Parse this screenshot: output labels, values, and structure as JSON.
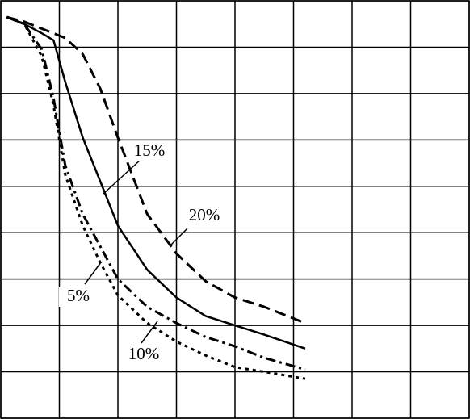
{
  "chart_data": {
    "type": "line",
    "x": [
      0.1,
      0.4,
      0.7,
      0.9,
      1.1,
      1.4,
      1.7,
      2.0,
      2.5,
      3.0,
      3.5,
      4.0,
      4.5,
      5.2
    ],
    "series": [
      {
        "name": "5%",
        "color": "#000000",
        "dash": "dotted",
        "values": [
          8.65,
          8.5,
          7.8,
          6.75,
          5.25,
          4.15,
          3.35,
          2.65,
          2.05,
          1.65,
          1.35,
          1.1,
          1.0,
          0.85
        ]
      },
      {
        "name": "10%",
        "color": "#000000",
        "dash": "dashdot",
        "values": [
          8.65,
          8.5,
          7.95,
          6.9,
          5.45,
          4.4,
          3.7,
          3.0,
          2.4,
          2.05,
          1.75,
          1.55,
          1.3,
          1.05
        ]
      },
      {
        "name": "15%",
        "color": "#000000",
        "dash": "solid",
        "values": [
          8.65,
          8.5,
          8.3,
          8.15,
          7.25,
          6.05,
          5.1,
          4.15,
          3.2,
          2.6,
          2.2,
          2.0,
          1.8,
          1.5
        ]
      },
      {
        "name": "20%",
        "color": "#000000",
        "dash": "dashed",
        "values": [
          8.65,
          8.55,
          8.4,
          8.3,
          8.2,
          7.85,
          7.1,
          6.05,
          4.4,
          3.55,
          2.95,
          2.6,
          2.4,
          2.05
        ]
      }
    ],
    "xlim": [
      0,
      8
    ],
    "ylim": [
      0,
      9
    ],
    "xticks": [
      0,
      1,
      2,
      3,
      4,
      5,
      6,
      7,
      8
    ],
    "yticks": [
      0,
      1,
      2,
      3,
      4,
      5,
      6,
      7,
      8,
      9
    ],
    "grid": true
  }
}
